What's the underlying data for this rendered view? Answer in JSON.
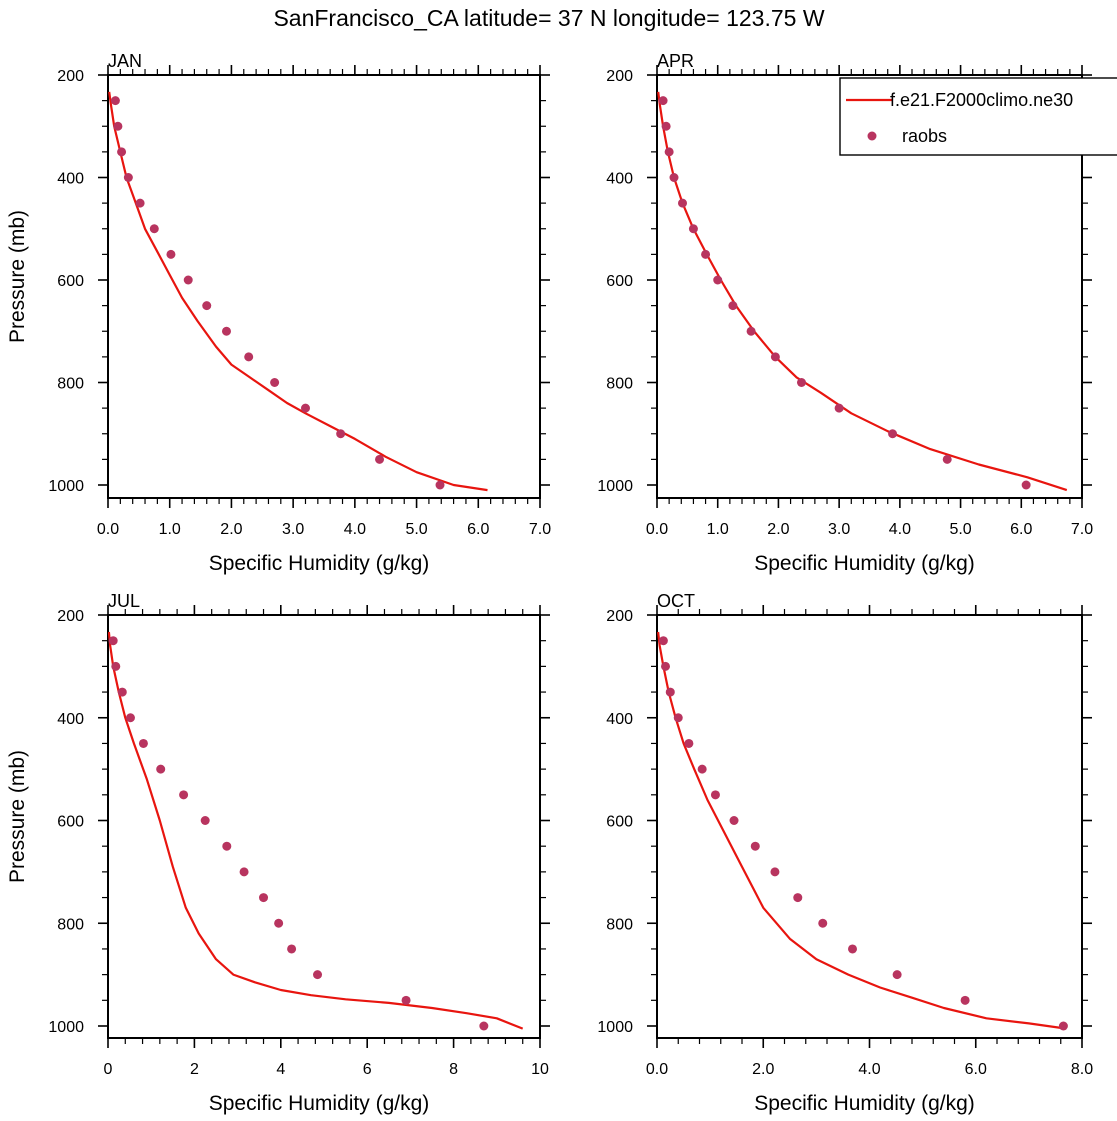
{
  "figure": {
    "title": "SanFrancisco_CA  latitude= 37 N longitude= 123.75 W"
  },
  "legend": {
    "model_label": "f.e21.F2000climo.ne30",
    "obs_label": "raobs"
  },
  "colors": {
    "model": "#e8150f",
    "obs": "#b8345f"
  },
  "chart_data": [
    {
      "type": "line",
      "panel": "JAN",
      "title": "JAN",
      "xlabel": "Specific Humidity (g/kg)",
      "ylabel": "Pressure (mb)",
      "xlim": [
        0,
        7
      ],
      "ylim": [
        200,
        1025
      ],
      "y_inverted": true,
      "xticks": [
        "0.0",
        "1.0",
        "2.0",
        "3.0",
        "4.0",
        "5.0",
        "6.0",
        "7.0"
      ],
      "xtick_values": [
        0,
        1,
        2,
        3,
        4,
        5,
        6,
        7
      ],
      "yticks": [
        "200",
        "400",
        "600",
        "800",
        "1000"
      ],
      "ytick_values": [
        200,
        400,
        600,
        800,
        1000
      ],
      "series": [
        {
          "name": "f.e21.F2000climo.ne30",
          "kind": "line",
          "x": [
            0.02,
            0.05,
            0.1,
            0.2,
            0.3,
            0.45,
            0.6,
            0.8,
            1.0,
            1.2,
            1.45,
            1.75,
            2.0,
            2.3,
            2.6,
            2.9,
            3.2,
            3.6,
            4.0,
            4.5,
            5.0,
            5.6,
            6.15
          ],
          "y": [
            233,
            260,
            300,
            350,
            400,
            450,
            500,
            545,
            590,
            635,
            680,
            730,
            765,
            790,
            815,
            840,
            860,
            885,
            910,
            945,
            975,
            1000,
            1010
          ]
        },
        {
          "name": "raobs",
          "kind": "scatter",
          "x": [
            0.12,
            0.16,
            0.22,
            0.33,
            0.52,
            0.75,
            1.02,
            1.3,
            1.6,
            1.92,
            2.28,
            2.7,
            3.2,
            3.77,
            4.4,
            5.38
          ],
          "y": [
            250,
            300,
            350,
            400,
            450,
            500,
            550,
            600,
            650,
            700,
            750,
            800,
            850,
            900,
            950,
            1000
          ]
        }
      ]
    },
    {
      "type": "line",
      "panel": "APR",
      "title": "APR",
      "xlabel": "Specific Humidity (g/kg)",
      "ylabel": "",
      "xlim": [
        0,
        7
      ],
      "ylim": [
        200,
        1025
      ],
      "y_inverted": true,
      "xticks": [
        "0.0",
        "1.0",
        "2.0",
        "3.0",
        "4.0",
        "5.0",
        "6.0",
        "7.0"
      ],
      "xtick_values": [
        0,
        1,
        2,
        3,
        4,
        5,
        6,
        7
      ],
      "yticks": [
        "200",
        "400",
        "600",
        "800",
        "1000"
      ],
      "ytick_values": [
        200,
        400,
        600,
        800,
        1000
      ],
      "series": [
        {
          "name": "f.e21.F2000climo.ne30",
          "kind": "line",
          "x": [
            0.02,
            0.05,
            0.1,
            0.18,
            0.28,
            0.42,
            0.6,
            0.82,
            1.05,
            1.3,
            1.6,
            1.95,
            2.3,
            2.7,
            3.2,
            3.8,
            4.5,
            5.3,
            6.1,
            6.75
          ],
          "y": [
            233,
            260,
            300,
            350,
            400,
            450,
            500,
            550,
            600,
            650,
            700,
            750,
            790,
            820,
            860,
            895,
            930,
            960,
            985,
            1010
          ]
        },
        {
          "name": "raobs",
          "kind": "scatter",
          "x": [
            0.1,
            0.15,
            0.2,
            0.28,
            0.42,
            0.6,
            0.8,
            1.0,
            1.25,
            1.55,
            1.95,
            2.38,
            3.0,
            3.88,
            4.78,
            6.08
          ],
          "y": [
            250,
            300,
            350,
            400,
            450,
            500,
            550,
            600,
            650,
            700,
            750,
            800,
            850,
            900,
            950,
            1000
          ]
        }
      ]
    },
    {
      "type": "line",
      "panel": "JUL",
      "title": "JUL",
      "xlabel": "Specific Humidity (g/kg)",
      "ylabel": "Pressure (mb)",
      "xlim": [
        0,
        10
      ],
      "ylim": [
        200,
        1025
      ],
      "y_inverted": true,
      "xticks": [
        "0",
        "2",
        "4",
        "6",
        "8",
        "10"
      ],
      "xtick_values": [
        0,
        2,
        4,
        6,
        8,
        10
      ],
      "yticks": [
        "200",
        "400",
        "600",
        "800",
        "1000"
      ],
      "ytick_values": [
        200,
        400,
        600,
        800,
        1000
      ],
      "series": [
        {
          "name": "f.e21.F2000climo.ne30",
          "kind": "line",
          "x": [
            0.02,
            0.05,
            0.12,
            0.25,
            0.4,
            0.6,
            0.9,
            1.2,
            1.5,
            1.8,
            2.1,
            2.5,
            2.9,
            3.4,
            4.0,
            4.7,
            5.5,
            6.5,
            7.5,
            8.3,
            9.0,
            9.6
          ],
          "y": [
            233,
            260,
            300,
            350,
            400,
            450,
            520,
            600,
            690,
            770,
            820,
            870,
            900,
            915,
            930,
            940,
            948,
            955,
            965,
            975,
            985,
            1005
          ]
        },
        {
          "name": "raobs",
          "kind": "scatter",
          "x": [
            0.12,
            0.18,
            0.33,
            0.52,
            0.82,
            1.22,
            1.75,
            2.25,
            2.75,
            3.15,
            3.6,
            3.95,
            4.25,
            4.85,
            6.9,
            8.7
          ],
          "y": [
            250,
            300,
            350,
            400,
            450,
            500,
            550,
            600,
            650,
            700,
            750,
            800,
            850,
            900,
            950,
            1000
          ]
        }
      ]
    },
    {
      "type": "line",
      "panel": "OCT",
      "title": "OCT",
      "xlabel": "Specific Humidity (g/kg)",
      "ylabel": "",
      "xlim": [
        0,
        8
      ],
      "ylim": [
        200,
        1025
      ],
      "y_inverted": true,
      "xticks": [
        "0.0",
        "2.0",
        "4.0",
        "6.0",
        "8.0"
      ],
      "xtick_values": [
        0,
        2,
        4,
        6,
        8
      ],
      "yticks": [
        "200",
        "400",
        "600",
        "800",
        "1000"
      ],
      "ytick_values": [
        200,
        400,
        600,
        800,
        1000
      ],
      "series": [
        {
          "name": "f.e21.F2000climo.ne30",
          "kind": "line",
          "x": [
            0.02,
            0.05,
            0.12,
            0.22,
            0.35,
            0.5,
            0.7,
            0.95,
            1.25,
            1.6,
            2.0,
            2.5,
            3.0,
            3.6,
            4.2,
            4.8,
            5.4,
            6.2,
            7.0,
            7.7
          ],
          "y": [
            233,
            260,
            300,
            350,
            400,
            450,
            500,
            560,
            620,
            690,
            770,
            830,
            870,
            900,
            925,
            945,
            965,
            985,
            995,
            1005
          ]
        },
        {
          "name": "raobs",
          "kind": "scatter",
          "x": [
            0.12,
            0.16,
            0.25,
            0.4,
            0.6,
            0.85,
            1.1,
            1.45,
            1.85,
            2.22,
            2.65,
            3.12,
            3.68,
            4.52,
            5.8,
            7.65
          ],
          "y": [
            250,
            300,
            350,
            400,
            450,
            500,
            550,
            600,
            650,
            700,
            750,
            800,
            850,
            900,
            950,
            1000
          ]
        }
      ]
    }
  ]
}
